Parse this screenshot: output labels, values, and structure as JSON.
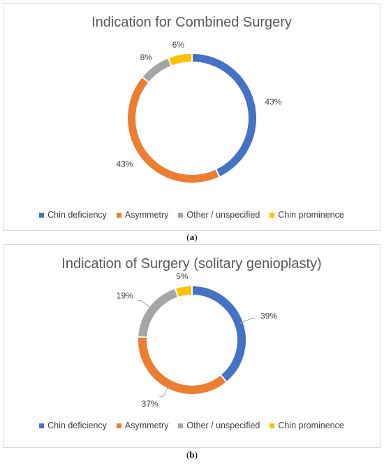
{
  "captions": {
    "a": "a",
    "b": "b"
  },
  "chart_data": [
    {
      "type": "pie",
      "style": "donut",
      "title": "Indication for Combined Surgery",
      "categories": [
        "Chin deficiency",
        "Asymmetry",
        "Other / unspecified",
        "Chin prominence"
      ],
      "values": [
        43,
        43,
        8,
        6
      ],
      "labels": [
        "43%",
        "43%",
        "8%",
        "6%"
      ],
      "colors": [
        "#4472c4",
        "#ed7d31",
        "#a5a5a5",
        "#ffc000"
      ],
      "legend_position": "bottom"
    },
    {
      "type": "pie",
      "style": "donut",
      "title": "Indication of Surgery (solitary genioplasty)",
      "categories": [
        "Chin deficiency",
        "Asymmetry",
        "Other / unspecified",
        "Chin prominence"
      ],
      "values": [
        39,
        37,
        19,
        5
      ],
      "labels": [
        "39%",
        "37%",
        "19%",
        "5%"
      ],
      "colors": [
        "#4472c4",
        "#ed7d31",
        "#a5a5a5",
        "#ffc000"
      ],
      "legend_position": "bottom"
    }
  ]
}
